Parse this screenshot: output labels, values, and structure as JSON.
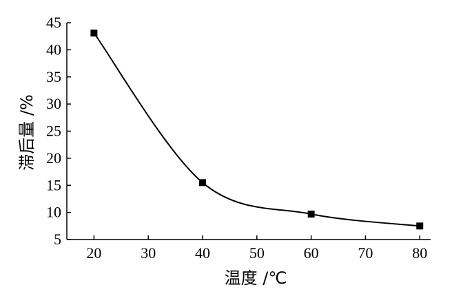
{
  "chart_data": {
    "type": "line",
    "title": "",
    "xlabel": "温度 /℃",
    "ylabel": "滞后量 /%",
    "xlim": [
      15,
      82
    ],
    "ylim": [
      5,
      45
    ],
    "xticks": [
      20,
      30,
      40,
      50,
      60,
      70,
      80
    ],
    "yticks": [
      5,
      10,
      15,
      20,
      25,
      30,
      35,
      40,
      45
    ],
    "grid": false,
    "legend": "none",
    "line_color": "#000000",
    "marker": "square",
    "series": [
      {
        "x": [
          20,
          40,
          60,
          80
        ],
        "y": [
          43.1,
          15.5,
          9.7,
          7.5
        ]
      }
    ]
  }
}
